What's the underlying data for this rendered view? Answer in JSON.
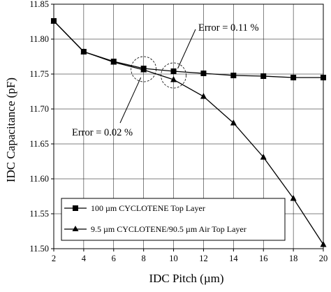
{
  "chart_data": {
    "type": "line",
    "title": "",
    "xlabel": "IDC Pitch (µm)",
    "ylabel": "IDC Capacitance (pF)",
    "xlim": [
      2,
      20
    ],
    "ylim": [
      11.5,
      11.85
    ],
    "xticks": [
      "2",
      "4",
      "6",
      "8",
      "10",
      "12",
      "14",
      "16",
      "18",
      "20"
    ],
    "yticks": [
      "11.50",
      "11.55",
      "11.60",
      "11.65",
      "11.70",
      "11.75",
      "11.80",
      "11.85"
    ],
    "grid": true,
    "legend_position": "bottom-left",
    "x": [
      2,
      4,
      6,
      8,
      10,
      12,
      14,
      16,
      18,
      20
    ],
    "series": [
      {
        "name": "100 µm CYCLOTENE Top Layer",
        "marker": "square",
        "values": [
          11.826,
          11.782,
          11.768,
          11.758,
          11.754,
          11.751,
          11.748,
          11.747,
          11.745,
          11.745
        ]
      },
      {
        "name": "9.5 µm CYCLOTENE/90.5 µm Air Top Layer",
        "marker": "triangle",
        "values": [
          11.826,
          11.782,
          11.767,
          11.756,
          11.742,
          11.718,
          11.68,
          11.631,
          11.572,
          11.506
        ]
      }
    ],
    "annotations": [
      {
        "text": "Error = 0.11 %",
        "at_x": 10
      },
      {
        "text": "Error = 0.02 %",
        "at_x": 8
      }
    ]
  }
}
